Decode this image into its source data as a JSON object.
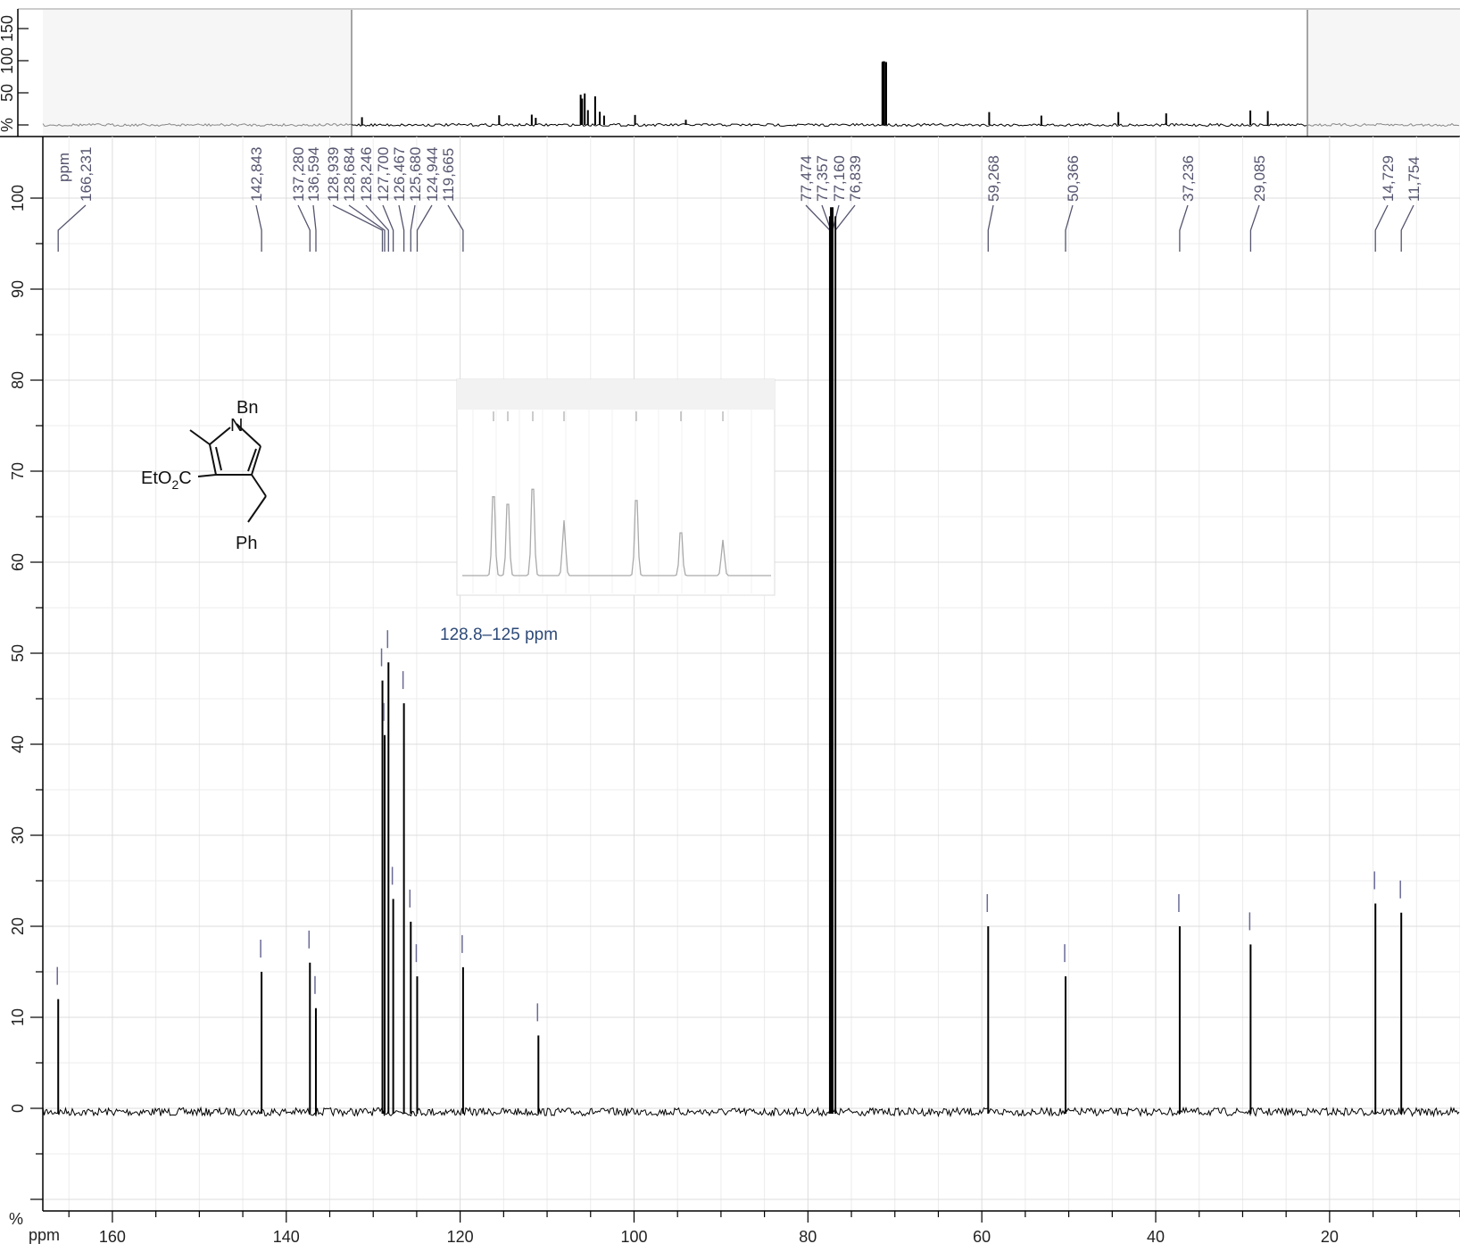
{
  "overview": {
    "y_ticks": [
      "%",
      "50",
      "100",
      "150"
    ]
  },
  "main": {
    "y_unit": "%",
    "x_unit": "ppm",
    "peak_label_header": "ppm"
  },
  "structure": {
    "labels": [
      "Bn",
      "N",
      "EtO",
      "2",
      "C",
      "Ph"
    ]
  },
  "inset": {
    "caption": "128.8–125 ppm"
  },
  "colors": {
    "spectrum": "#000000",
    "peak_label": "#55556f",
    "grid": "#e3e3e3",
    "caption": "#2d4a78"
  },
  "chart_data": {
    "type": "line",
    "xlabel": "ppm",
    "ylabel": "%",
    "x_reversed": true,
    "xlim": [
      168,
      5
    ],
    "ylim": [
      -12,
      103
    ],
    "x_ticks": [
      160,
      140,
      120,
      100,
      80,
      60,
      40,
      20
    ],
    "y_ticks": [
      0,
      10,
      20,
      30,
      40,
      50,
      60,
      70,
      80,
      90,
      100
    ],
    "grid": true,
    "peak_labels": [
      "166,231",
      "142,843",
      "137,280",
      "136,594",
      "128,939",
      "128,684",
      "128,246",
      "127,700",
      "126,467",
      "125,680",
      "124,944",
      "119,665",
      "77,474",
      "77,357",
      "77,160",
      "76,839",
      "59,268",
      "50,366",
      "37,236",
      "29,085",
      "14,729",
      "11,754"
    ],
    "series": [
      {
        "x": [
          166.231,
          142.843,
          137.28,
          136.594,
          128.939,
          128.684,
          128.246,
          127.7,
          126.467,
          125.68,
          124.944,
          119.665,
          111.0,
          77.474,
          77.357,
          77.16,
          76.839,
          59.268,
          50.366,
          37.236,
          29.085,
          14.729,
          11.754
        ],
        "y": [
          12,
          15,
          16,
          11,
          47,
          41,
          49,
          23,
          44.5,
          20.5,
          14.5,
          15.5,
          8,
          98,
          99,
          99,
          98,
          20,
          14.5,
          20,
          18,
          22.5,
          21.5
        ]
      }
    ]
  }
}
